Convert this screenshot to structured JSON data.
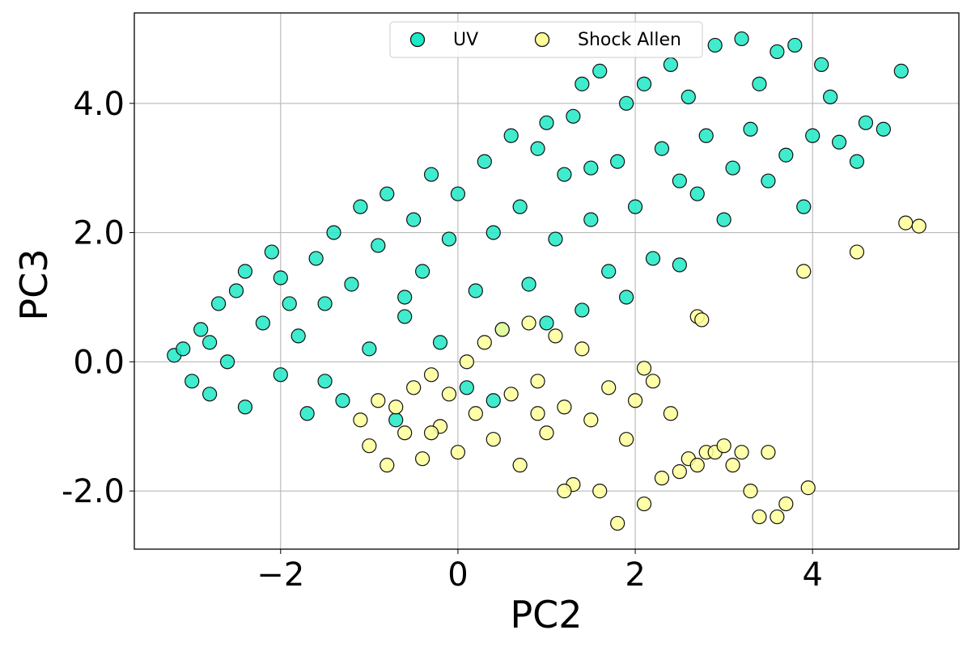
{
  "chart_data": {
    "type": "scatter",
    "xlabel": "PC2",
    "ylabel": "PC3",
    "xlim": [
      -3.65,
      5.65
    ],
    "ylim": [
      -2.9,
      5.4
    ],
    "x_ticks": [
      -2,
      0,
      2,
      4
    ],
    "x_tick_labels": [
      "−2",
      "0",
      "2",
      "4"
    ],
    "y_ticks": [
      -2,
      0,
      2,
      4
    ],
    "y_tick_labels": [
      "-2.0",
      "0.0",
      "2.0",
      "4.0"
    ],
    "grid": true,
    "legend": "top-center",
    "series": [
      {
        "name": "UV",
        "color": "#1de9c6",
        "points": [
          [
            -3.2,
            0.1
          ],
          [
            -3.1,
            0.2
          ],
          [
            -3.0,
            -0.3
          ],
          [
            -2.9,
            0.5
          ],
          [
            -2.8,
            -0.5
          ],
          [
            -2.7,
            0.9
          ],
          [
            -2.6,
            0.0
          ],
          [
            -2.5,
            1.1
          ],
          [
            -2.4,
            -0.7
          ],
          [
            -2.4,
            1.4
          ],
          [
            -2.2,
            0.6
          ],
          [
            -2.1,
            1.7
          ],
          [
            -2.0,
            -0.2
          ],
          [
            -2.0,
            1.3
          ],
          [
            -1.8,
            0.4
          ],
          [
            -1.7,
            -0.8
          ],
          [
            -1.6,
            1.6
          ],
          [
            -1.5,
            0.9
          ],
          [
            -1.4,
            2.0
          ],
          [
            -1.3,
            -0.6
          ],
          [
            -1.2,
            1.2
          ],
          [
            -1.1,
            2.4
          ],
          [
            -1.0,
            0.2
          ],
          [
            -0.9,
            1.8
          ],
          [
            -0.8,
            2.6
          ],
          [
            -0.7,
            -0.9
          ],
          [
            -0.6,
            0.7
          ],
          [
            -0.5,
            2.2
          ],
          [
            -0.4,
            1.4
          ],
          [
            -0.3,
            2.9
          ],
          [
            -0.2,
            0.3
          ],
          [
            -0.1,
            1.9
          ],
          [
            0.0,
            2.6
          ],
          [
            0.1,
            -0.4
          ],
          [
            0.2,
            1.1
          ],
          [
            0.3,
            3.1
          ],
          [
            0.4,
            2.0
          ],
          [
            0.5,
            0.5
          ],
          [
            0.6,
            3.5
          ],
          [
            0.7,
            2.4
          ],
          [
            0.8,
            1.2
          ],
          [
            0.9,
            3.3
          ],
          [
            1.0,
            3.7
          ],
          [
            1.1,
            1.9
          ],
          [
            1.2,
            2.9
          ],
          [
            1.3,
            3.8
          ],
          [
            1.4,
            0.8
          ],
          [
            1.4,
            4.3
          ],
          [
            1.5,
            2.2
          ],
          [
            1.6,
            4.5
          ],
          [
            1.7,
            1.4
          ],
          [
            1.8,
            3.1
          ],
          [
            1.9,
            4.0
          ],
          [
            2.0,
            2.4
          ],
          [
            2.1,
            4.3
          ],
          [
            2.2,
            1.6
          ],
          [
            2.3,
            3.3
          ],
          [
            2.4,
            4.6
          ],
          [
            2.5,
            2.8
          ],
          [
            2.6,
            4.1
          ],
          [
            2.7,
            2.6
          ],
          [
            2.8,
            3.5
          ],
          [
            2.9,
            4.9
          ],
          [
            3.0,
            2.2
          ],
          [
            3.1,
            3.0
          ],
          [
            3.2,
            5.0
          ],
          [
            3.3,
            3.6
          ],
          [
            3.4,
            4.3
          ],
          [
            3.5,
            2.8
          ],
          [
            3.6,
            4.8
          ],
          [
            3.7,
            3.2
          ],
          [
            3.8,
            4.9
          ],
          [
            3.9,
            2.4
          ],
          [
            4.0,
            3.5
          ],
          [
            4.1,
            4.6
          ],
          [
            4.2,
            4.1
          ],
          [
            4.3,
            3.4
          ],
          [
            4.5,
            3.1
          ],
          [
            4.6,
            3.7
          ],
          [
            4.8,
            3.6
          ],
          [
            5.0,
            4.5
          ],
          [
            -2.8,
            0.3
          ],
          [
            -1.9,
            0.9
          ],
          [
            -0.6,
            1.0
          ],
          [
            0.4,
            -0.6
          ],
          [
            1.0,
            0.6
          ],
          [
            1.5,
            3.0
          ],
          [
            2.5,
            1.5
          ],
          [
            1.9,
            1.0
          ],
          [
            -1.5,
            -0.3
          ]
        ]
      },
      {
        "name": "Shock Allen",
        "color": "#ffff99",
        "points": [
          [
            -1.1,
            -0.9
          ],
          [
            -1.0,
            -1.3
          ],
          [
            -0.9,
            -0.6
          ],
          [
            -0.8,
            -1.6
          ],
          [
            -0.7,
            -0.7
          ],
          [
            -0.6,
            -1.1
          ],
          [
            -0.5,
            -0.4
          ],
          [
            -0.4,
            -1.5
          ],
          [
            -0.3,
            -0.2
          ],
          [
            -0.2,
            -1.0
          ],
          [
            -0.1,
            -0.5
          ],
          [
            0.0,
            -1.4
          ],
          [
            0.1,
            0.0
          ],
          [
            0.2,
            -0.8
          ],
          [
            0.3,
            0.3
          ],
          [
            0.4,
            -1.2
          ],
          [
            0.5,
            0.5
          ],
          [
            0.6,
            -0.5
          ],
          [
            0.7,
            -1.6
          ],
          [
            0.8,
            0.6
          ],
          [
            0.9,
            -0.3
          ],
          [
            1.0,
            -1.1
          ],
          [
            1.1,
            0.4
          ],
          [
            1.2,
            -0.7
          ],
          [
            1.3,
            -1.9
          ],
          [
            1.4,
            0.2
          ],
          [
            1.5,
            -0.9
          ],
          [
            1.6,
            -2.0
          ],
          [
            1.7,
            -0.4
          ],
          [
            1.8,
            -2.5
          ],
          [
            1.9,
            -1.2
          ],
          [
            2.0,
            -0.6
          ],
          [
            2.1,
            -2.2
          ],
          [
            2.2,
            -0.3
          ],
          [
            2.3,
            -1.8
          ],
          [
            2.4,
            -0.8
          ],
          [
            2.5,
            -1.7
          ],
          [
            2.6,
            -1.5
          ],
          [
            2.7,
            -1.6
          ],
          [
            2.8,
            -1.4
          ],
          [
            2.9,
            -1.4
          ],
          [
            3.0,
            -1.3
          ],
          [
            3.1,
            -1.6
          ],
          [
            3.2,
            -1.4
          ],
          [
            3.3,
            -2.0
          ],
          [
            3.4,
            -2.4
          ],
          [
            3.5,
            -1.4
          ],
          [
            3.6,
            -2.4
          ],
          [
            3.7,
            -2.2
          ],
          [
            3.9,
            1.4
          ],
          [
            3.95,
            -1.95
          ],
          [
            4.5,
            1.7
          ],
          [
            5.05,
            2.15
          ],
          [
            5.2,
            2.1
          ],
          [
            2.7,
            0.7
          ],
          [
            2.75,
            0.65
          ],
          [
            1.2,
            -2.0
          ],
          [
            2.1,
            -0.1
          ],
          [
            0.9,
            -0.8
          ],
          [
            -0.3,
            -1.1
          ]
        ]
      }
    ]
  }
}
